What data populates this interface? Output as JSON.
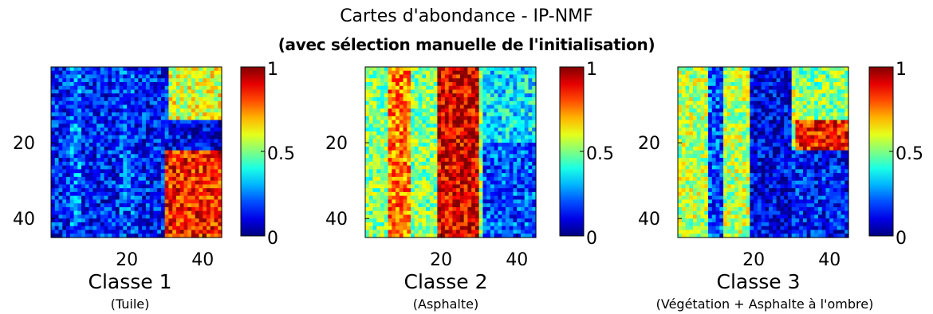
{
  "figure": {
    "title": "Cartes d'abondance - IP-NMF",
    "subtitle": "(avec sélection manuelle de l'initialisation)"
  },
  "chart_data": [
    {
      "type": "heatmap",
      "title": "Classe 1",
      "subtitle": "(Tuile)",
      "x_ticks": [
        "20",
        "40"
      ],
      "y_ticks": [
        "20",
        "40"
      ],
      "grid_size": [
        45,
        45
      ],
      "xlim": [
        0,
        45
      ],
      "ylim": [
        45,
        0
      ],
      "colormap": "jet",
      "colorbar": {
        "min": 0,
        "max": 1,
        "ticks": [
          "0",
          "0.5",
          "1"
        ]
      },
      "regions": [
        {
          "x": [
            1,
            45
          ],
          "y": [
            1,
            45
          ],
          "value": 0.15
        },
        {
          "x": [
            6,
            8
          ],
          "y": [
            1,
            45
          ],
          "value": 0.25
        },
        {
          "x": [
            19,
            22
          ],
          "y": [
            1,
            45
          ],
          "value": 0.2
        },
        {
          "x": [
            32,
            45
          ],
          "y": [
            1,
            14
          ],
          "value": 0.6
        },
        {
          "x": [
            32,
            45
          ],
          "y": [
            15,
            22
          ],
          "value": 0.1
        },
        {
          "x": [
            31,
            45
          ],
          "y": [
            23,
            45
          ],
          "value": 0.85
        }
      ]
    },
    {
      "type": "heatmap",
      "title": "Classe 2",
      "subtitle": "(Asphalte)",
      "x_ticks": [
        "20",
        "40"
      ],
      "y_ticks": [
        "20",
        "40"
      ],
      "grid_size": [
        45,
        45
      ],
      "xlim": [
        0,
        45
      ],
      "ylim": [
        45,
        0
      ],
      "colormap": "jet",
      "colorbar": {
        "min": 0,
        "max": 1,
        "ticks": [
          "0",
          "0.5",
          "1"
        ]
      },
      "regions": [
        {
          "x": [
            1,
            45
          ],
          "y": [
            1,
            45
          ],
          "value": 0.5
        },
        {
          "x": [
            7,
            12
          ],
          "y": [
            1,
            45
          ],
          "value": 0.75
        },
        {
          "x": [
            20,
            30
          ],
          "y": [
            1,
            45
          ],
          "value": 0.9
        },
        {
          "x": [
            32,
            45
          ],
          "y": [
            1,
            20
          ],
          "value": 0.35
        },
        {
          "x": [
            32,
            45
          ],
          "y": [
            21,
            45
          ],
          "value": 0.2
        }
      ]
    },
    {
      "type": "heatmap",
      "title": "Classe 3",
      "subtitle": "(Végétation + Asphalte à l'ombre)",
      "x_ticks": [
        "20",
        "40"
      ],
      "y_ticks": [
        "20",
        "40"
      ],
      "grid_size": [
        45,
        45
      ],
      "xlim": [
        0,
        45
      ],
      "ylim": [
        45,
        0
      ],
      "colormap": "jet",
      "colorbar": {
        "min": 0,
        "max": 1,
        "ticks": [
          "0",
          "0.5",
          "1"
        ]
      },
      "regions": [
        {
          "x": [
            1,
            45
          ],
          "y": [
            1,
            45
          ],
          "value": 0.55
        },
        {
          "x": [
            9,
            12
          ],
          "y": [
            1,
            45
          ],
          "value": 0.2
        },
        {
          "x": [
            20,
            30
          ],
          "y": [
            1,
            45
          ],
          "value": 0.1
        },
        {
          "x": [
            32,
            45
          ],
          "y": [
            1,
            14
          ],
          "value": 0.5
        },
        {
          "x": [
            32,
            45
          ],
          "y": [
            15,
            22
          ],
          "value": 0.85
        },
        {
          "x": [
            31,
            45
          ],
          "y": [
            23,
            45
          ],
          "value": 0.15
        }
      ]
    }
  ]
}
